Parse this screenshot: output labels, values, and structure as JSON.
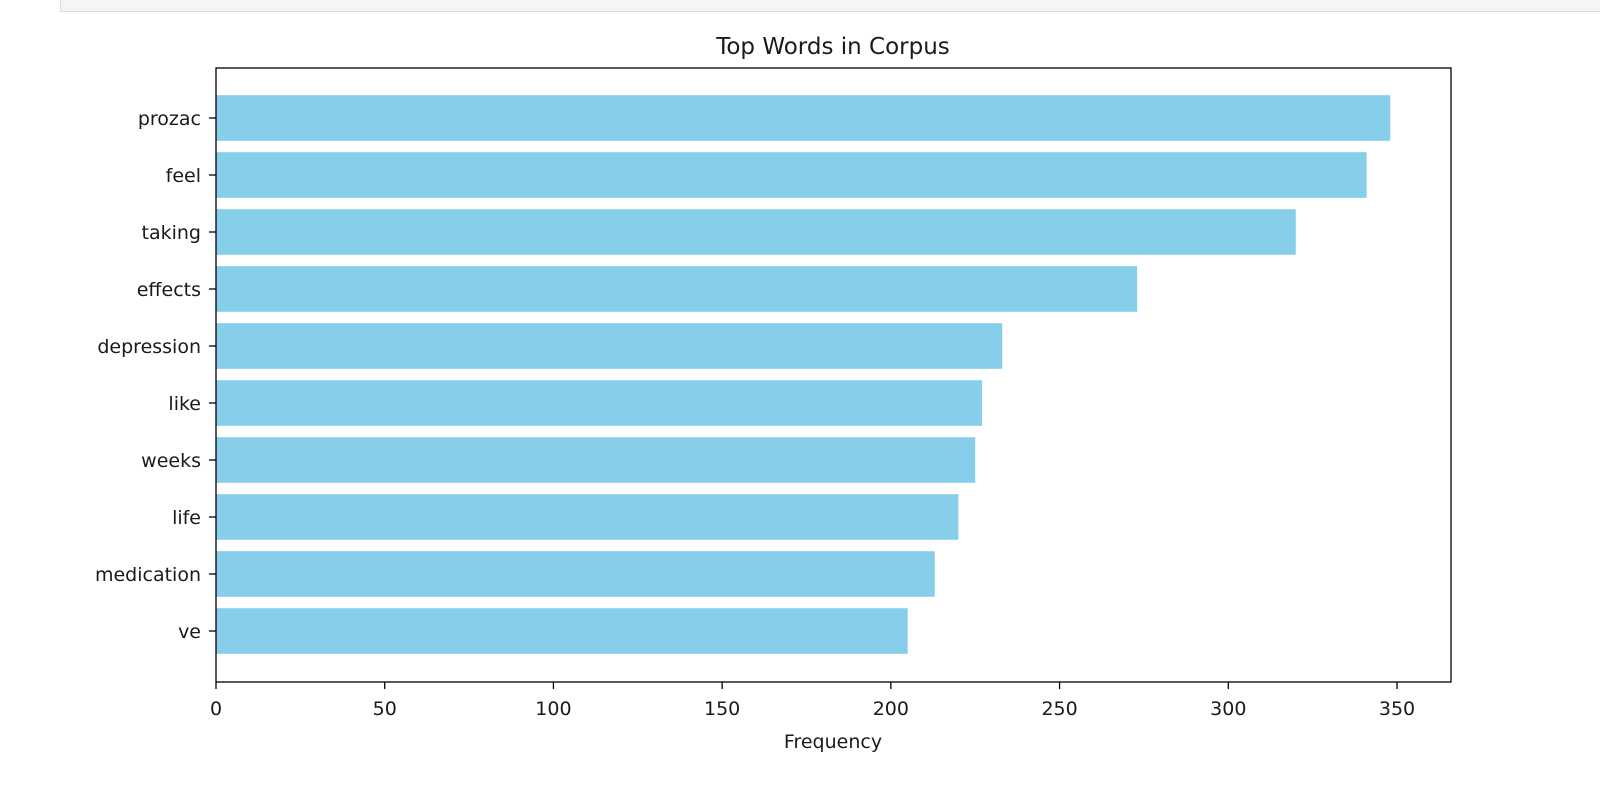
{
  "chart_data": {
    "type": "bar",
    "orientation": "horizontal",
    "title": "Top Words in Corpus",
    "xlabel": "Frequency",
    "ylabel": "",
    "categories": [
      "prozac",
      "feel",
      "taking",
      "effects",
      "depression",
      "like",
      "weeks",
      "life",
      "medication",
      "ve"
    ],
    "values": [
      348,
      341,
      320,
      273,
      233,
      227,
      225,
      220,
      213,
      205
    ],
    "xlim": [
      0,
      366
    ],
    "xticks": [
      0,
      50,
      100,
      150,
      200,
      250,
      300,
      350
    ],
    "grid": false,
    "bar_color": "#87CEEB"
  }
}
